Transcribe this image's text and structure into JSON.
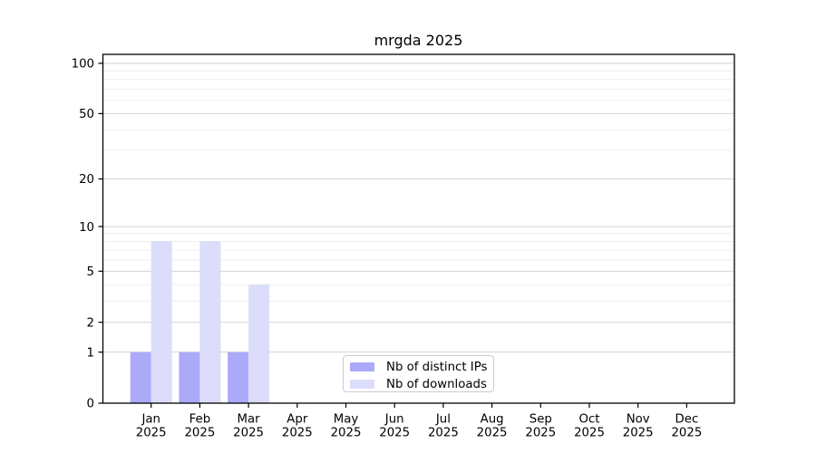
{
  "chart_data": {
    "type": "bar",
    "title": "mrgda 2025",
    "categories": [
      "Jan",
      "Feb",
      "Mar",
      "Apr",
      "May",
      "Jun",
      "Jul",
      "Aug",
      "Sep",
      "Oct",
      "Nov",
      "Dec"
    ],
    "x_tick_year": "2025",
    "series": [
      {
        "name": "Nb of distinct IPs",
        "color": "#abaaf9",
        "values": [
          1,
          1,
          1,
          0,
          0,
          0,
          0,
          0,
          0,
          0,
          0,
          0
        ]
      },
      {
        "name": "Nb of downloads",
        "color": "#dcdcfb",
        "values": [
          8,
          8,
          4,
          0,
          0,
          0,
          0,
          0,
          0,
          0,
          0,
          0
        ]
      }
    ],
    "y_axis": {
      "scale": "log1p",
      "major_ticks": [
        0,
        1,
        2,
        5,
        10,
        20,
        50,
        100
      ],
      "minor_gridlines": [
        3,
        4,
        6,
        7,
        8,
        9,
        30,
        40,
        60,
        70,
        80,
        90
      ],
      "ylim": [
        0,
        113
      ]
    },
    "legend": {
      "position": "lower-center-inside"
    },
    "colors": {
      "major_grid": "#d3d3d3",
      "minor_grid": "#ececec",
      "axis": "#000000",
      "tick_label": "#000000",
      "background": "#ffffff",
      "legend_border": "#cbcbcb"
    }
  }
}
